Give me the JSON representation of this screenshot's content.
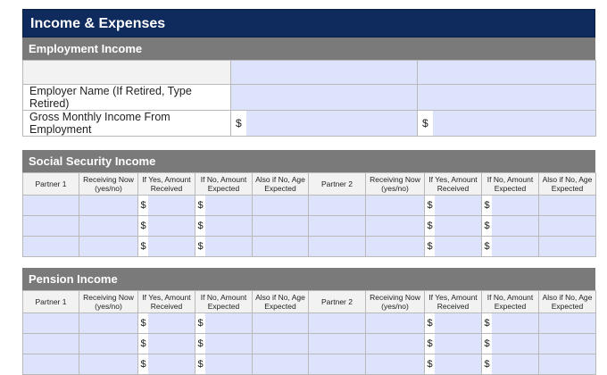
{
  "title": "Income & Expenses",
  "employment": {
    "heading": "Employment Income",
    "employer_label": "Employer Name (If Retired, Type Retired)",
    "gross_label": "Gross Monthly Income From Employment",
    "currency": "$"
  },
  "social_security": {
    "heading": "Social Security Income",
    "columns": [
      "Partner 1",
      "Receiving Now (yes/no)",
      "If Yes, Amount Received",
      "If No, Amount Expected",
      "Also if No, Age Expected",
      "Partner 2",
      "Receiving Now (yes/no)",
      "If Yes, Amount Received",
      "If No, Amount Expected",
      "Also if No, Age Expected"
    ],
    "rows": 3
  },
  "pension": {
    "heading": "Pension Income",
    "columns": [
      "Partner 1",
      "Receiving Now (yes/no)",
      "If Yes, Amount Received",
      "If No, Amount Expected",
      "Also if No, Age Expected",
      "Partner 2",
      "Receiving Now (yes/no)",
      "If Yes, Amount Received",
      "If No, Amount Expected",
      "Also if No, Age Expected"
    ],
    "rows": 3
  },
  "colors": {
    "title_bar": "#0f2a5c",
    "section_bar": "#7a7a7a",
    "input_fill": "#dde3fb"
  }
}
